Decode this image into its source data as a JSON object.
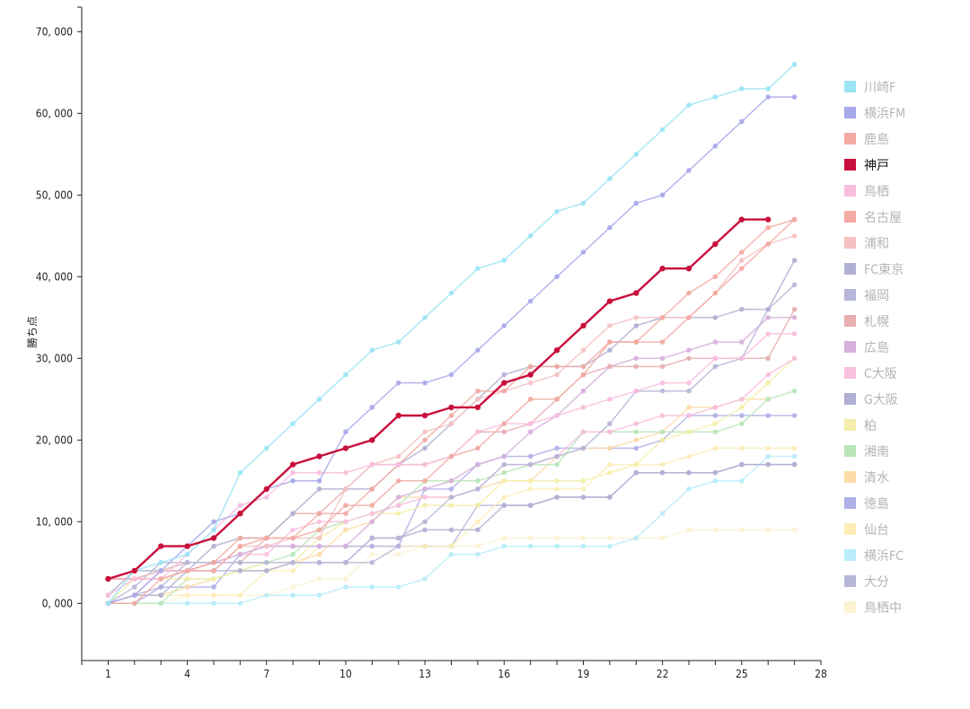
{
  "chart_data": {
    "type": "line",
    "title": "",
    "xlabel": "",
    "ylabel": "勝ち点",
    "x": [
      1,
      2,
      3,
      4,
      5,
      6,
      7,
      8,
      9,
      10,
      11,
      12,
      13,
      14,
      15,
      16,
      17,
      18,
      19,
      20,
      21,
      22,
      23,
      24,
      25,
      26,
      27
    ],
    "xlim": [
      0,
      28
    ],
    "ylim": [
      -7000,
      73000
    ],
    "x_ticks": [
      1,
      4,
      7,
      10,
      13,
      16,
      19,
      22,
      25,
      28
    ],
    "y_ticks": [
      0,
      10000,
      20000,
      30000,
      40000,
      50000,
      60000,
      70000
    ],
    "y_tick_labels": [
      "0, 000",
      "10, 000",
      "20, 000",
      "30, 000",
      "40, 000",
      "50, 000",
      "60, 000",
      "70, 000"
    ],
    "grid": false,
    "legend_position": "right",
    "series": [
      {
        "name": "川崎F",
        "color": "#9be4f5",
        "values": [
          0,
          4000,
          5000,
          6000,
          9000,
          16000,
          19000,
          22000,
          25000,
          28000,
          31000,
          32000,
          35000,
          38000,
          41000,
          42000,
          45000,
          48000,
          49000,
          52000,
          55000,
          58000,
          61000,
          62000,
          63000,
          63000,
          66000
        ]
      },
      {
        "name": "横浜FM",
        "color": "#a8a8ec",
        "values": [
          0,
          1000,
          4000,
          7000,
          10000,
          11000,
          14000,
          15000,
          15000,
          21000,
          24000,
          27000,
          27000,
          28000,
          31000,
          34000,
          37000,
          40000,
          43000,
          46000,
          49000,
          50000,
          53000,
          56000,
          59000,
          62000,
          62000
        ]
      },
      {
        "name": "鹿島",
        "color": "#f2aaa2",
        "values": [
          0,
          0,
          3000,
          4000,
          4000,
          7000,
          8000,
          8000,
          9000,
          12000,
          12000,
          15000,
          15000,
          18000,
          19000,
          22000,
          25000,
          25000,
          28000,
          32000,
          32000,
          35000,
          38000,
          40000,
          43000,
          46000,
          47000
        ]
      },
      {
        "name": "神戸",
        "color": "#c8103c",
        "values": [
          3000,
          4000,
          7000,
          7000,
          8000,
          11000,
          14000,
          17000,
          18000,
          19000,
          20000,
          23000,
          23000,
          24000,
          24000,
          27000,
          28000,
          31000,
          34000,
          37000,
          38000,
          41000,
          41000,
          44000,
          47000,
          47000,
          null
        ]
      },
      {
        "name": "鳥栖",
        "color": "#f9bedf",
        "values": [
          1000,
          3000,
          3000,
          6000,
          9000,
          12000,
          13000,
          16000,
          16000,
          16000,
          17000,
          17000,
          17000,
          18000,
          21000,
          22000,
          22000,
          23000,
          24000,
          25000,
          26000,
          27000,
          27000,
          30000,
          30000,
          33000,
          33000
        ]
      },
      {
        "name": "名古屋",
        "color": "#f2aaa2",
        "values": [
          3000,
          3000,
          3000,
          4000,
          5000,
          8000,
          8000,
          8000,
          11000,
          11000,
          14000,
          17000,
          20000,
          23000,
          26000,
          26000,
          29000,
          29000,
          29000,
          32000,
          32000,
          32000,
          35000,
          38000,
          41000,
          44000,
          47000
        ]
      },
      {
        "name": "浦和",
        "color": "#f5c2c2",
        "values": [
          3000,
          3000,
          4000,
          4000,
          4000,
          7000,
          7000,
          8000,
          8000,
          14000,
          17000,
          18000,
          21000,
          22000,
          25000,
          26000,
          27000,
          28000,
          31000,
          34000,
          35000,
          35000,
          35000,
          38000,
          42000,
          44000,
          45000
        ]
      },
      {
        "name": "FC東京",
        "color": "#b0b0d4",
        "values": [
          1000,
          4000,
          4000,
          4000,
          7000,
          8000,
          8000,
          11000,
          14000,
          14000,
          14000,
          17000,
          19000,
          22000,
          25000,
          28000,
          29000,
          29000,
          29000,
          31000,
          34000,
          35000,
          35000,
          35000,
          36000,
          36000,
          42000
        ]
      },
      {
        "name": "福岡",
        "color": "#b6b6d8",
        "values": [
          0,
          2000,
          5000,
          5000,
          5000,
          5000,
          5000,
          5000,
          5000,
          5000,
          8000,
          8000,
          10000,
          13000,
          14000,
          17000,
          17000,
          18000,
          19000,
          22000,
          26000,
          26000,
          26000,
          29000,
          30000,
          36000,
          39000
        ]
      },
      {
        "name": "札幌",
        "color": "#e8aeb0",
        "values": [
          0,
          1000,
          4000,
          5000,
          5000,
          5000,
          8000,
          11000,
          11000,
          14000,
          17000,
          17000,
          17000,
          18000,
          21000,
          21000,
          22000,
          25000,
          28000,
          29000,
          29000,
          29000,
          30000,
          30000,
          30000,
          30000,
          36000
        ]
      },
      {
        "name": "広島",
        "color": "#d6b0dc",
        "values": [
          3000,
          3000,
          4000,
          4000,
          5000,
          6000,
          7000,
          7000,
          7000,
          7000,
          10000,
          13000,
          14000,
          15000,
          17000,
          18000,
          21000,
          23000,
          26000,
          29000,
          30000,
          30000,
          31000,
          32000,
          32000,
          35000,
          35000
        ]
      },
      {
        "name": "C大阪",
        "color": "#f8bfde",
        "values": [
          3000,
          3000,
          4000,
          4000,
          5000,
          6000,
          6000,
          9000,
          10000,
          10000,
          11000,
          12000,
          13000,
          13000,
          14000,
          17000,
          17000,
          18000,
          21000,
          21000,
          22000,
          23000,
          23000,
          24000,
          25000,
          28000,
          30000
        ]
      },
      {
        "name": "G大阪",
        "color": "#b0b0d4",
        "values": [
          0,
          1000,
          1000,
          4000,
          4000,
          4000,
          4000,
          5000,
          5000,
          5000,
          8000,
          8000,
          9000,
          9000,
          9000,
          12000,
          12000,
          13000,
          13000,
          13000,
          16000,
          16000,
          16000,
          16000,
          17000,
          17000,
          17000
        ]
      },
      {
        "name": "柏",
        "color": "#f4eeaa",
        "values": [
          0,
          3000,
          3000,
          3000,
          3000,
          4000,
          5000,
          5000,
          8000,
          10000,
          11000,
          11000,
          12000,
          12000,
          12000,
          15000,
          15000,
          15000,
          15000,
          16000,
          17000,
          20000,
          21000,
          22000,
          24000,
          27000,
          30000
        ]
      },
      {
        "name": "湘南",
        "color": "#b8e6b8",
        "values": [
          0,
          0,
          0,
          3000,
          3000,
          4000,
          5000,
          6000,
          9000,
          10000,
          11000,
          12000,
          15000,
          15000,
          15000,
          16000,
          17000,
          17000,
          21000,
          21000,
          21000,
          21000,
          21000,
          21000,
          22000,
          25000,
          26000
        ]
      },
      {
        "name": "清水",
        "color": "#fbdca8",
        "values": [
          0,
          1000,
          1000,
          2000,
          3000,
          4000,
          4000,
          5000,
          6000,
          9000,
          10000,
          13000,
          13000,
          13000,
          14000,
          15000,
          15000,
          18000,
          19000,
          19000,
          20000,
          21000,
          24000,
          24000,
          25000,
          25000,
          null
        ]
      },
      {
        "name": "徳島",
        "color": "#b0b0e8",
        "values": [
          0,
          0,
          2000,
          2000,
          2000,
          6000,
          7000,
          7000,
          7000,
          7000,
          7000,
          7000,
          14000,
          14000,
          17000,
          18000,
          18000,
          19000,
          19000,
          19000,
          19000,
          20000,
          23000,
          23000,
          23000,
          23000,
          23000
        ]
      },
      {
        "name": "仙台",
        "color": "#fcedb8",
        "values": [
          0,
          1000,
          1000,
          1000,
          1000,
          1000,
          4000,
          4000,
          7000,
          7000,
          7000,
          7000,
          7000,
          7000,
          10000,
          13000,
          14000,
          14000,
          14000,
          17000,
          17000,
          17000,
          18000,
          19000,
          19000,
          19000,
          19000
        ]
      },
      {
        "name": "横浜FC",
        "color": "#b8ecf8",
        "values": [
          0,
          0,
          0,
          0,
          0,
          0,
          1000,
          1000,
          1000,
          2000,
          2000,
          2000,
          3000,
          6000,
          6000,
          7000,
          7000,
          7000,
          7000,
          7000,
          8000,
          11000,
          14000,
          15000,
          15000,
          18000,
          18000
        ]
      },
      {
        "name": "大分",
        "color": "#b6b6d8",
        "values": [
          0,
          1000,
          2000,
          5000,
          5000,
          5000,
          5000,
          5000,
          5000,
          5000,
          5000,
          7000,
          7000,
          7000,
          12000,
          12000,
          12000,
          13000,
          13000,
          13000,
          16000,
          16000,
          16000,
          16000,
          17000,
          17000,
          17000
        ]
      },
      {
        "name": "鳥栖中",
        "color": "#fbf3d2",
        "values": [
          0,
          0,
          0,
          1000,
          1000,
          1000,
          1000,
          2000,
          3000,
          3000,
          6000,
          6000,
          7000,
          7000,
          7000,
          8000,
          8000,
          8000,
          8000,
          8000,
          8000,
          8000,
          9000,
          9000,
          9000,
          9000,
          9000
        ]
      }
    ]
  }
}
